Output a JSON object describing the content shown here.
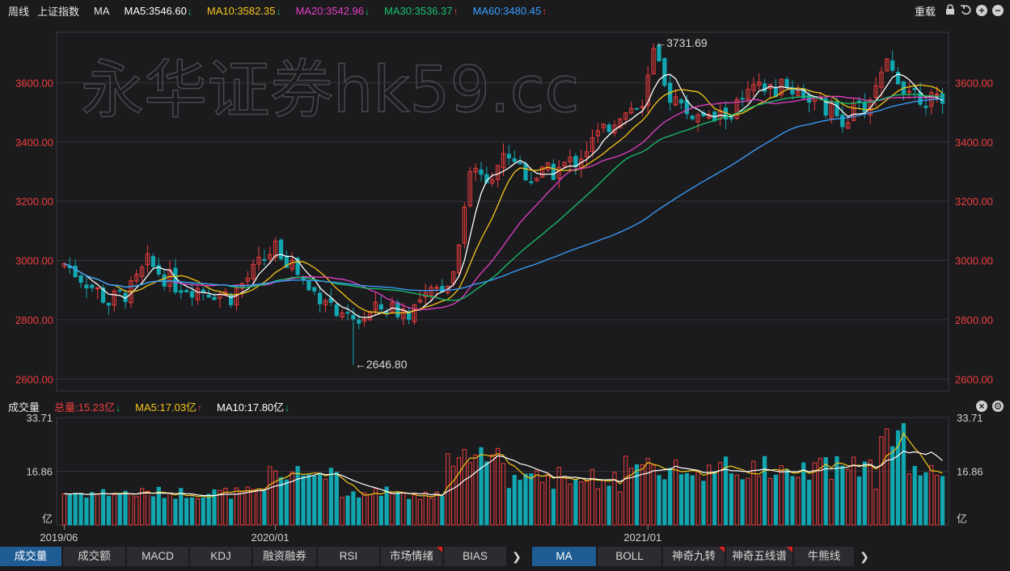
{
  "header": {
    "period": "周线",
    "index_name": "上证指数",
    "indicator": "MA",
    "ma_items": [
      {
        "label": "MA5:3546.60",
        "arrow": "↓",
        "color": "#ffffff",
        "arrow_color": "#19c26b"
      },
      {
        "label": "MA10:3582.35",
        "arrow": "↓",
        "color": "#f5c518",
        "arrow_color": "#19c26b"
      },
      {
        "label": "MA20:3542.96",
        "arrow": "↓",
        "color": "#e23fc3",
        "arrow_color": "#19c26b"
      },
      {
        "label": "MA30:3536.37",
        "arrow": "↑",
        "color": "#19c26b",
        "arrow_color": "#f03c3c"
      },
      {
        "label": "MA60:3480.45",
        "arrow": "↑",
        "color": "#3aa0ff",
        "arrow_color": "#f03c3c"
      }
    ],
    "reload_label": "重载",
    "icons": [
      "lock-icon",
      "undo-icon",
      "zoom-in-icon",
      "zoom-out-icon"
    ]
  },
  "volume_header": {
    "title": "成交量",
    "items": [
      {
        "label": "总量:15.23亿",
        "arrow": "↓",
        "color": "#f03c3c",
        "arrow_color": "#19c26b"
      },
      {
        "label": "MA5:17.03亿",
        "arrow": "↑",
        "color": "#f5c518",
        "arrow_color": "#f03c3c"
      },
      {
        "label": "MA10:17.80亿",
        "arrow": "↓",
        "color": "#ffffff",
        "arrow_color": "#19c26b"
      }
    ]
  },
  "watermark": "永华证券hk59.cc",
  "annotations": {
    "high": "3731.69",
    "low": "2646.80"
  },
  "chart_data": {
    "type": "candlestick",
    "period": "weekly",
    "price_axis": {
      "ticks": [
        "3600.00",
        "3400.00",
        "3200.00",
        "3000.00",
        "2800.00",
        "2600.00"
      ],
      "range": [
        2560,
        3770
      ]
    },
    "volume_axis": {
      "ticks": [
        "33.71",
        "16.86",
        "亿"
      ],
      "max": 33.71
    },
    "x_axis_labels": [
      "2019/06",
      "2020/01",
      "2021/01"
    ],
    "highest": 3731.69,
    "lowest": 2646.8,
    "last_values": {
      "MA5": 3546.6,
      "MA10": 3582.35,
      "MA20": 3542.96,
      "MA30": 3536.37,
      "MA60": 3480.45,
      "volume": 15.23,
      "VOL_MA5": 17.03,
      "VOL_MA10": 17.8
    },
    "colors": {
      "up": "#f03c3c",
      "down": "#12a6b0",
      "MA5": "#ffffff",
      "MA10": "#f5c518",
      "MA20": "#e23fc3",
      "MA30": "#19c26b",
      "MA60": "#3aa0ff"
    }
  },
  "tabs_left": [
    {
      "label": "成交量",
      "active": true,
      "flag": false
    },
    {
      "label": "成交额",
      "active": false,
      "flag": false
    },
    {
      "label": "MACD",
      "active": false,
      "flag": false
    },
    {
      "label": "KDJ",
      "active": false,
      "flag": false
    },
    {
      "label": "融资融券",
      "active": false,
      "flag": false
    },
    {
      "label": "RSI",
      "active": false,
      "flag": false
    },
    {
      "label": "市场情绪",
      "active": false,
      "flag": true
    },
    {
      "label": "BIAS",
      "active": false,
      "flag": false
    }
  ],
  "tabs_right": [
    {
      "label": "MA",
      "active": true,
      "flag": false
    },
    {
      "label": "BOLL",
      "active": false,
      "flag": false
    },
    {
      "label": "神奇九转",
      "active": false,
      "flag": true
    },
    {
      "label": "神奇五线谱",
      "active": false,
      "flag": true
    },
    {
      "label": "牛熊线",
      "active": false,
      "flag": false
    }
  ],
  "more_glyph": "❯"
}
